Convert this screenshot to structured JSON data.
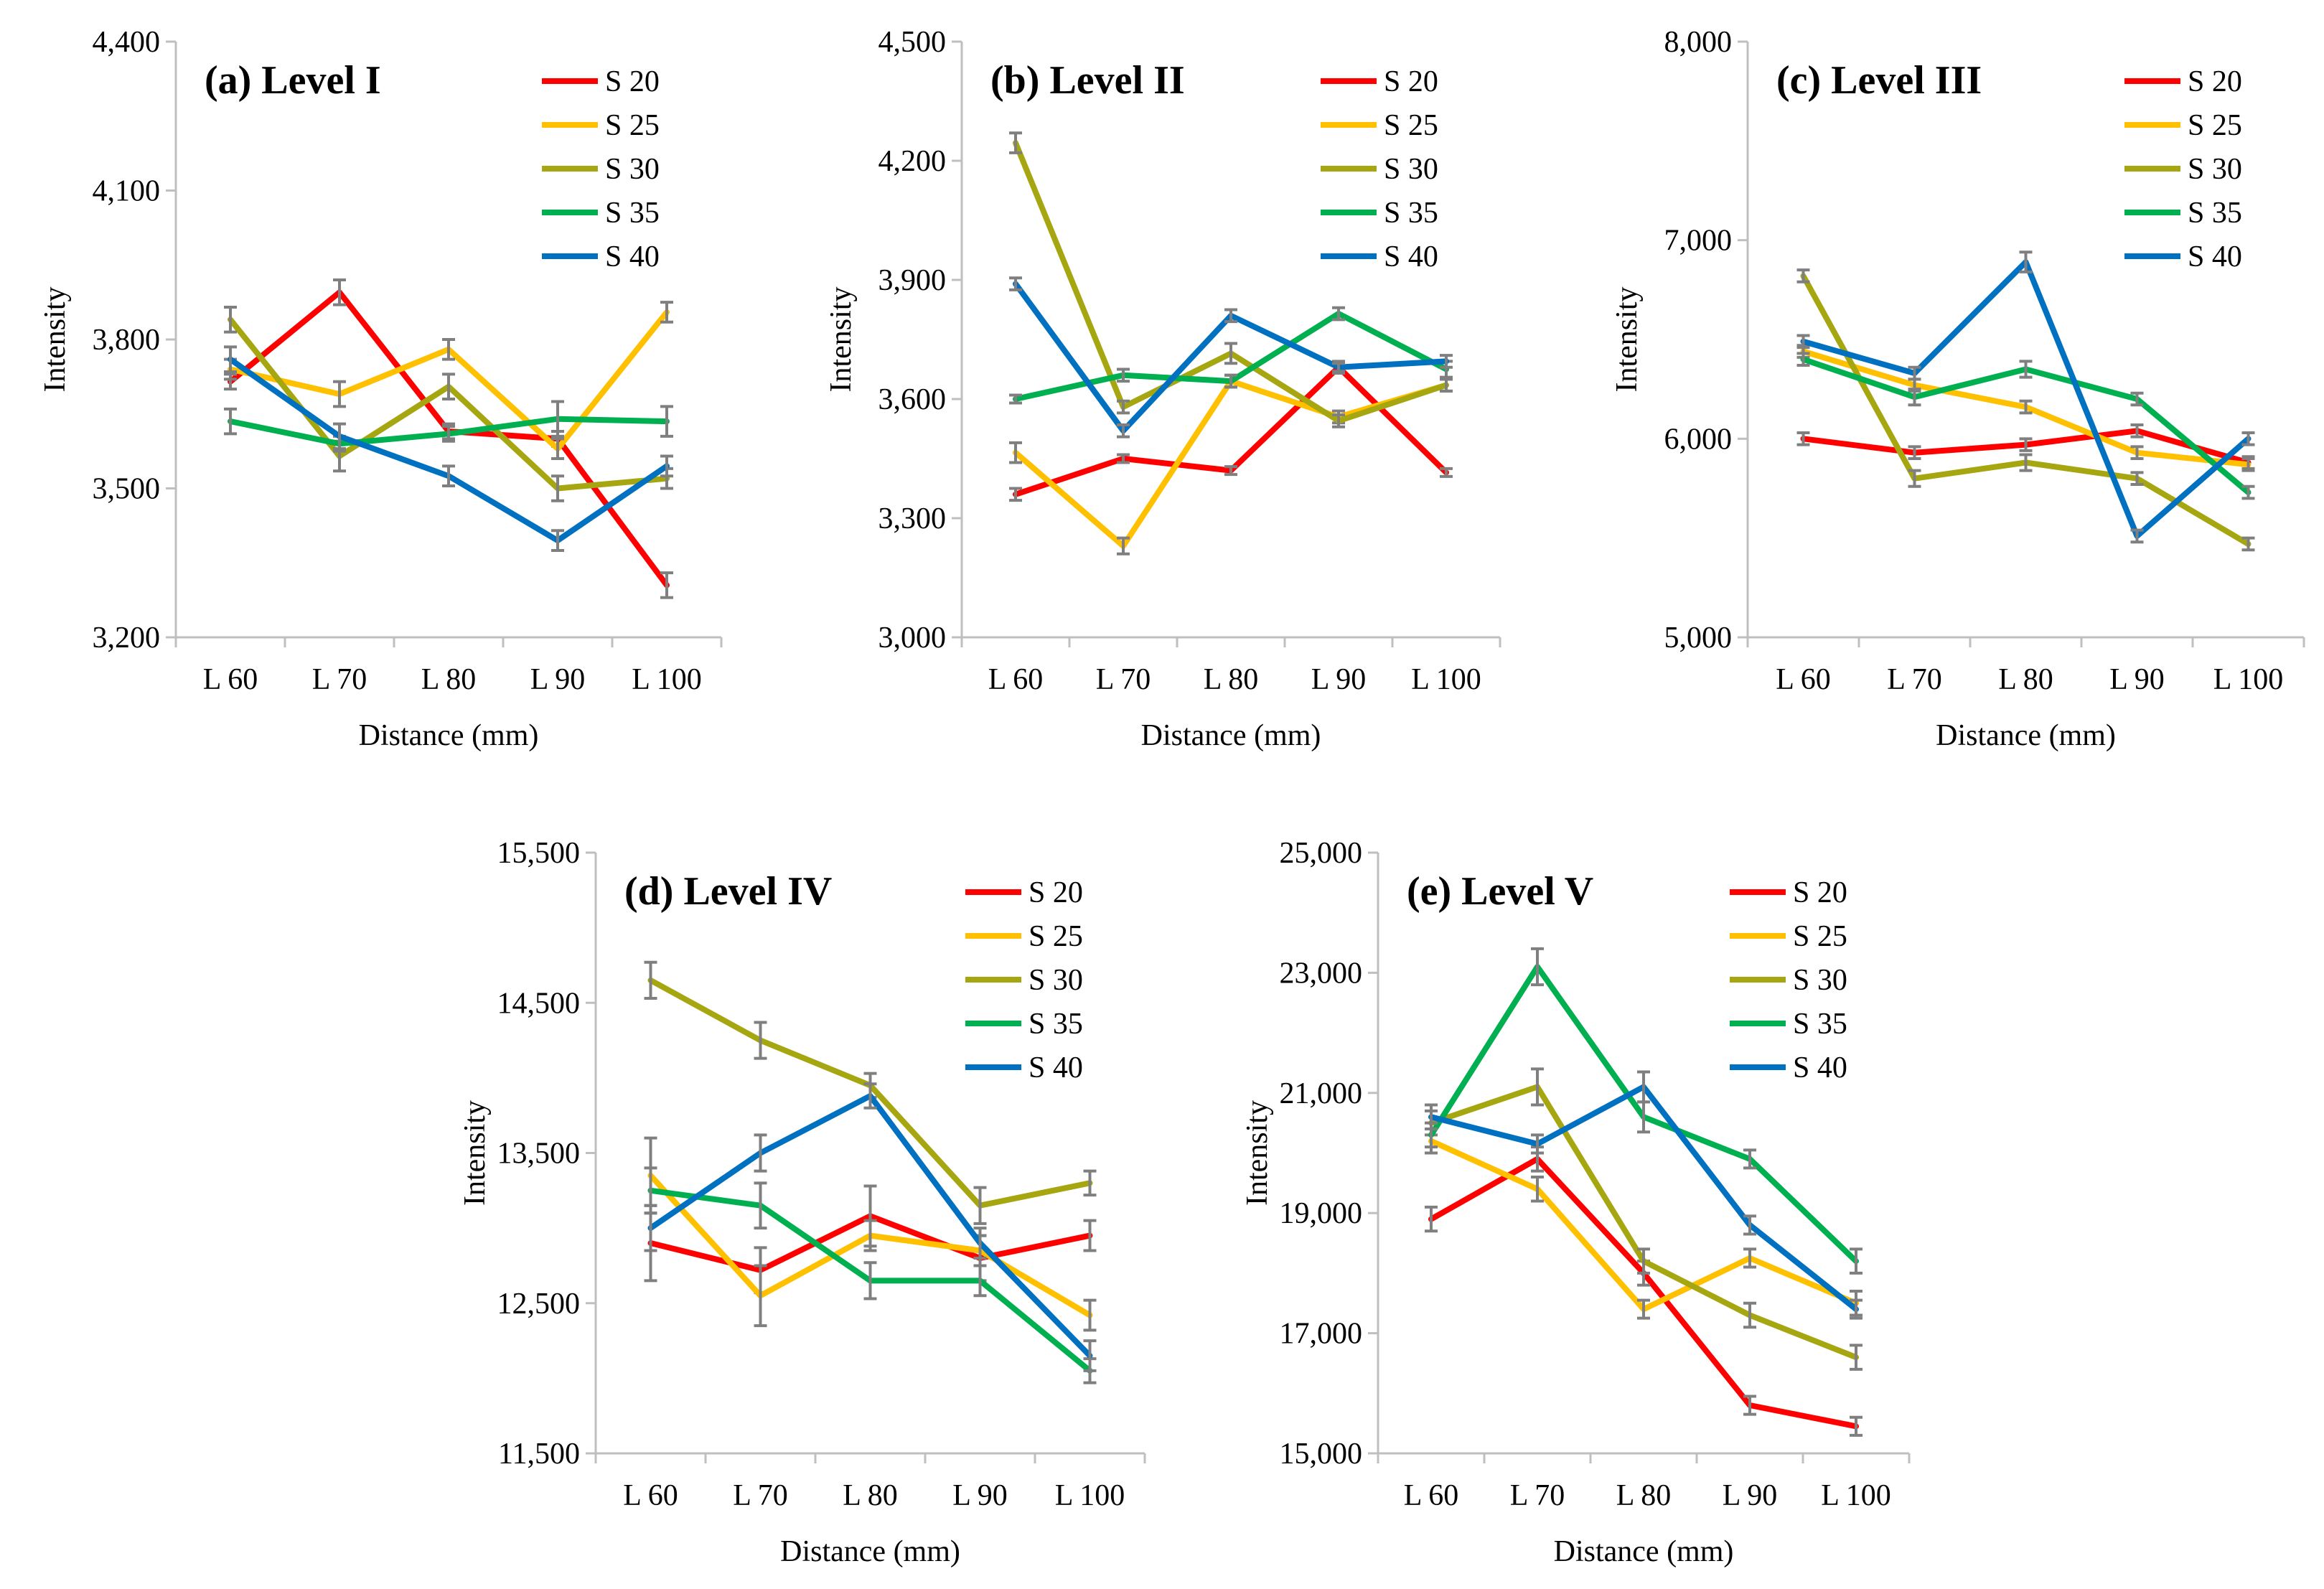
{
  "figure": {
    "series_colors": {
      "S 20": "#ff0000",
      "S 25": "#ffc000",
      "S 30": "#a6a610",
      "S 35": "#00b050",
      "S 40": "#0070c0"
    },
    "error_bar_color": "#7f7f7f",
    "axis_color": "#bfbfbf"
  },
  "chart_data": [
    {
      "type": "line",
      "title": "(a) Level I",
      "xlabel": "Distance (mm)",
      "ylabel": "Intensity",
      "categories": [
        "L 60",
        "L 70",
        "L 80",
        "L 90",
        "L 100"
      ],
      "ylim": [
        3200,
        4400
      ],
      "yticks": [
        3200,
        3500,
        3800,
        4100,
        4400
      ],
      "ytick_labels": [
        "3,200",
        "3,500",
        "3,800",
        "4,100",
        "4,400"
      ],
      "legend_position": "top-right",
      "series": [
        {
          "name": "S 20",
          "values": [
            3715,
            3895,
            3615,
            3600,
            3305
          ],
          "errors": [
            15,
            25,
            15,
            15,
            25
          ]
        },
        {
          "name": "S 25",
          "values": [
            3740,
            3690,
            3780,
            3580,
            3855
          ],
          "errors": [
            20,
            25,
            20,
            20,
            20
          ]
        },
        {
          "name": "S 30",
          "values": [
            3840,
            3565,
            3705,
            3500,
            3520
          ],
          "errors": [
            25,
            30,
            25,
            25,
            20
          ]
        },
        {
          "name": "S 35",
          "values": [
            3635,
            3590,
            3610,
            3640,
            3635
          ],
          "errors": [
            25,
            15,
            15,
            35,
            30
          ]
        },
        {
          "name": "S 40",
          "values": [
            3760,
            3605,
            3525,
            3395,
            3545
          ],
          "errors": [
            25,
            25,
            20,
            20,
            20
          ]
        }
      ]
    },
    {
      "type": "line",
      "title": "(b) Level II",
      "xlabel": "Distance (mm)",
      "ylabel": "Intensity",
      "categories": [
        "L 60",
        "L 70",
        "L 80",
        "L 90",
        "L 100"
      ],
      "ylim": [
        3000,
        4500
      ],
      "yticks": [
        3000,
        3300,
        3600,
        3900,
        4200,
        4500
      ],
      "ytick_labels": [
        "3,000",
        "3,300",
        "3,600",
        "3,900",
        "4,200",
        "4,500"
      ],
      "legend_position": "top-right",
      "series": [
        {
          "name": "S 20",
          "values": [
            3360,
            3450,
            3420,
            3680,
            3415
          ],
          "errors": [
            15,
            10,
            10,
            15,
            10
          ]
        },
        {
          "name": "S 25",
          "values": [
            3465,
            3230,
            3645,
            3555,
            3635
          ],
          "errors": [
            25,
            20,
            15,
            15,
            15
          ]
        },
        {
          "name": "S 30",
          "values": [
            4245,
            3580,
            3715,
            3545,
            3635
          ],
          "errors": [
            25,
            15,
            25,
            15,
            15
          ]
        },
        {
          "name": "S 35",
          "values": [
            3600,
            3660,
            3645,
            3815,
            3675
          ],
          "errors": [
            10,
            15,
            15,
            15,
            20
          ]
        },
        {
          "name": "S 40",
          "values": [
            3890,
            3520,
            3810,
            3680,
            3695
          ],
          "errors": [
            15,
            15,
            15,
            10,
            15
          ]
        }
      ]
    },
    {
      "type": "line",
      "title": "(c) Level III",
      "xlabel": "Distance (mm)",
      "ylabel": "Intensity",
      "categories": [
        "L 60",
        "L 70",
        "L 80",
        "L 90",
        "L 100"
      ],
      "ylim": [
        5000,
        8000
      ],
      "yticks": [
        5000,
        6000,
        7000,
        8000
      ],
      "ytick_labels": [
        "5,000",
        "6,000",
        "7,000",
        "8,000"
      ],
      "legend_position": "top-right",
      "series": [
        {
          "name": "S 20",
          "values": [
            6000,
            5930,
            5970,
            6040,
            5880
          ],
          "errors": [
            30,
            30,
            30,
            30,
            30
          ]
        },
        {
          "name": "S 25",
          "values": [
            6440,
            6270,
            6160,
            5930,
            5870
          ],
          "errors": [
            30,
            30,
            30,
            30,
            30
          ]
        },
        {
          "name": "S 30",
          "values": [
            6820,
            5800,
            5880,
            5800,
            5470
          ],
          "errors": [
            30,
            40,
            40,
            30,
            30
          ]
        },
        {
          "name": "S 35",
          "values": [
            6400,
            6210,
            6350,
            6200,
            5730
          ],
          "errors": [
            30,
            40,
            40,
            30,
            30
          ]
        },
        {
          "name": "S 40",
          "values": [
            6490,
            6330,
            6890,
            5510,
            6000
          ],
          "errors": [
            30,
            30,
            50,
            30,
            30
          ]
        }
      ]
    },
    {
      "type": "line",
      "title": "(d) Level IV",
      "xlabel": "Distance (mm)",
      "ylabel": "Intensity",
      "categories": [
        "L 60",
        "L 70",
        "L 80",
        "L 90",
        "L 100"
      ],
      "ylim": [
        11500,
        15500
      ],
      "yticks": [
        11500,
        12500,
        13500,
        14500,
        15500
      ],
      "ytick_labels": [
        "11,500",
        "12,500",
        "13,500",
        "14,500",
        "15,500"
      ],
      "legend_position": "top-right",
      "series": [
        {
          "name": "S 20",
          "values": [
            12900,
            12720,
            13080,
            12800,
            12950
          ],
          "errors": [
            250,
            150,
            200,
            150,
            100
          ]
        },
        {
          "name": "S 25",
          "values": [
            13350,
            12550,
            12950,
            12850,
            12420
          ],
          "errors": [
            250,
            200,
            100,
            100,
            100
          ]
        },
        {
          "name": "S 30",
          "values": [
            14650,
            14250,
            13950,
            13150,
            13300
          ],
          "errors": [
            120,
            120,
            80,
            120,
            80
          ]
        },
        {
          "name": "S 35",
          "values": [
            13250,
            13150,
            12650,
            12650,
            12050
          ],
          "errors": [
            150,
            150,
            120,
            100,
            80
          ]
        },
        {
          "name": "S 40",
          "values": [
            13000,
            13500,
            13880,
            12900,
            12150
          ],
          "errors": [
            150,
            120,
            80,
            100,
            100
          ]
        }
      ]
    },
    {
      "type": "line",
      "title": "(e) Level V",
      "xlabel": "Distance (mm)",
      "ylabel": "Intensity",
      "categories": [
        "L 60",
        "L 70",
        "L 80",
        "L 90",
        "L 100"
      ],
      "ylim": [
        15000,
        25000
      ],
      "yticks": [
        15000,
        17000,
        19000,
        21000,
        23000,
        25000
      ],
      "ytick_labels": [
        "15,000",
        "17,000",
        "19,000",
        "21,000",
        "23,000",
        "25,000"
      ],
      "legend_position": "top-right",
      "series": [
        {
          "name": "S 20",
          "values": [
            18900,
            19900,
            18000,
            15800,
            15450
          ],
          "errors": [
            200,
            200,
            200,
            150,
            150
          ]
        },
        {
          "name": "S 25",
          "values": [
            20200,
            19400,
            17400,
            18250,
            17500
          ],
          "errors": [
            200,
            200,
            150,
            150,
            200
          ]
        },
        {
          "name": "S 30",
          "values": [
            20500,
            21100,
            18200,
            17300,
            16600
          ],
          "errors": [
            200,
            300,
            200,
            200,
            200
          ]
        },
        {
          "name": "S 35",
          "values": [
            20300,
            23100,
            20600,
            19900,
            18200
          ],
          "errors": [
            200,
            300,
            250,
            150,
            200
          ]
        },
        {
          "name": "S 40",
          "values": [
            20600,
            20150,
            21100,
            18800,
            17400
          ],
          "errors": [
            200,
            150,
            250,
            150,
            150
          ]
        }
      ]
    }
  ]
}
